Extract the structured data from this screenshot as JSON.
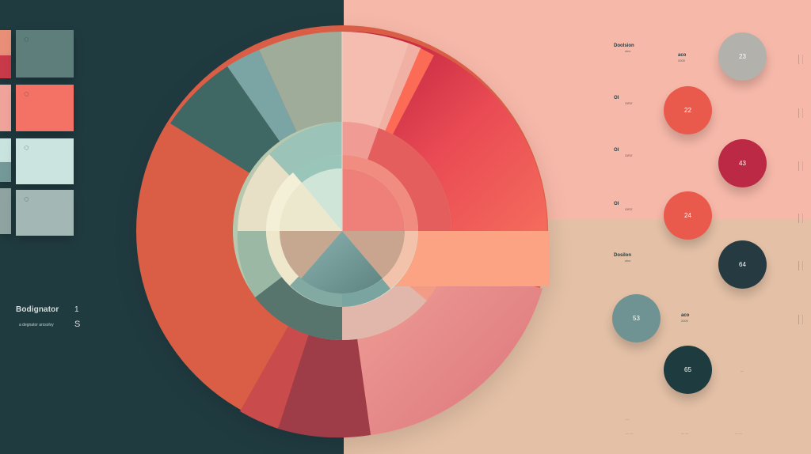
{
  "left_sidebar": {
    "title": "Bodignator",
    "mark": "1",
    "subtitle": "a degnator arxsolvy",
    "mark_2": "S"
  },
  "right_labels": [
    {
      "main": "Doolsion",
      "sub": "oinz"
    },
    {
      "main": "OI",
      "sub": "GIRZ"
    },
    {
      "main": "OI",
      "sub": "GIRZ"
    },
    {
      "main": "OI",
      "sub": "GIRZ"
    },
    {
      "main": "Dosilon",
      "sub": "oinz"
    },
    {
      "main": "aco",
      "sub": "2000"
    },
    {
      "main": "aco",
      "sub": "2000"
    }
  ],
  "bubbles": [
    {
      "value": "23",
      "color": "#b3b1ac"
    },
    {
      "value": "22",
      "color": "#ea5a4c"
    },
    {
      "value": "43",
      "color": "#bb2944"
    },
    {
      "value": "24",
      "color": "#ea5a4c"
    },
    {
      "value": "64",
      "color": "#253a41"
    },
    {
      "value": "53",
      "color": "#6f9393"
    },
    {
      "value": "65",
      "color": "#1e3c3f"
    }
  ],
  "colors": {
    "left_bg": "#203b40",
    "right_top_bg": "#f6b8a9",
    "right_bottom_bg": "#e3c0a6",
    "coral": "#e06b4e",
    "red": "#bb2944",
    "pink": "#f27f6c",
    "sage": "#89aaa1",
    "teal": "#426e6e",
    "cream": "#ece9d0",
    "tan": "#d3ad8f",
    "mint": "#cfe7e2"
  },
  "icons": {
    "swatch_icon": "small-circle-icon"
  }
}
